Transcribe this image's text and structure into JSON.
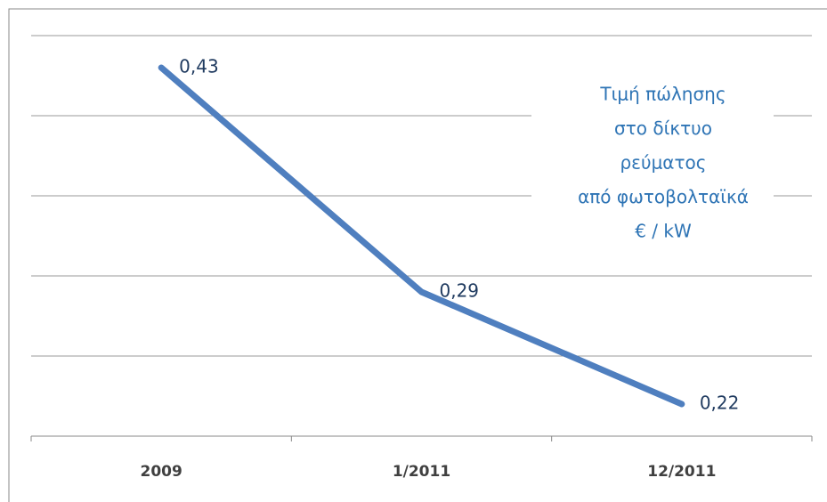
{
  "chart_data": {
    "type": "line",
    "title": [
      "Τιμή πώλησης",
      "στο δίκτυο",
      "ρεύματος",
      "από φωτοβολταϊκά",
      "€ / kW"
    ],
    "categories": [
      "2009",
      "1/2011",
      "12/2011"
    ],
    "series": [
      {
        "name": "Τιμή πώλησης",
        "color": "#4f7fbf",
        "values": [
          0.43,
          0.29,
          0.22
        ],
        "value_labels": [
          "0,43",
          "0,29",
          "0,22"
        ]
      }
    ],
    "ylim": [
      0.2,
      0.45
    ],
    "yticks": [
      0.2,
      0.25,
      0.3,
      0.35,
      0.4,
      0.45
    ],
    "grid": true
  }
}
